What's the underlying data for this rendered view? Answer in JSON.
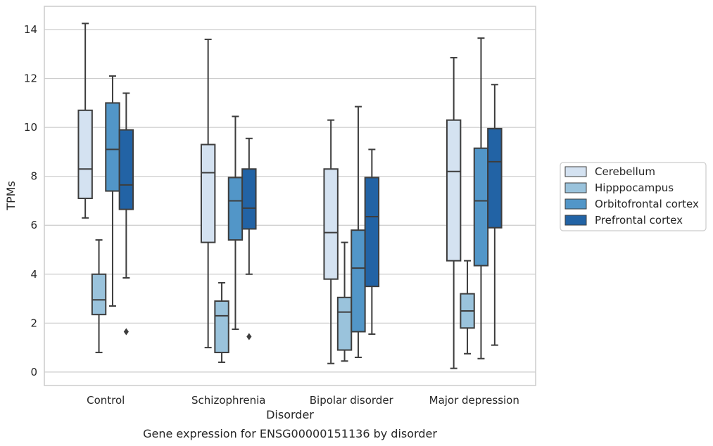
{
  "chart_data": {
    "type": "box",
    "title": "Gene expression for ENSG00000151136 by disorder",
    "xlabel": "Disorder",
    "ylabel": "TPMs",
    "categories": [
      "Control",
      "Schizophrenia",
      "Bipolar disorder",
      "Major depression"
    ],
    "ylim": [
      -0.55,
      14.95
    ],
    "yticks": [
      "0",
      "2",
      "4",
      "6",
      "8",
      "10",
      "12",
      "14"
    ],
    "grid": "horizontal",
    "legend_position": "right",
    "series": [
      {
        "name": "Cerebellum",
        "color": "#d4e2f1",
        "boxes": [
          {
            "category": "Control",
            "whisker_low": 6.3,
            "q1": 7.1,
            "median": 8.3,
            "q3": 10.7,
            "whisker_high": 14.25,
            "outliers": []
          },
          {
            "category": "Schizophrenia",
            "whisker_low": 1.0,
            "q1": 5.3,
            "median": 8.15,
            "q3": 9.3,
            "whisker_high": 13.6,
            "outliers": []
          },
          {
            "category": "Bipolar disorder",
            "whisker_low": 0.35,
            "q1": 3.8,
            "median": 5.7,
            "q3": 8.3,
            "whisker_high": 10.3,
            "outliers": []
          },
          {
            "category": "Major depression",
            "whisker_low": 0.15,
            "q1": 4.55,
            "median": 8.2,
            "q3": 10.3,
            "whisker_high": 12.85,
            "outliers": []
          }
        ]
      },
      {
        "name": "Hipppocampus",
        "color": "#9ac3dc",
        "boxes": [
          {
            "category": "Control",
            "whisker_low": 0.8,
            "q1": 2.35,
            "median": 2.95,
            "q3": 4.0,
            "whisker_high": 5.4,
            "outliers": []
          },
          {
            "category": "Schizophrenia",
            "whisker_low": 0.4,
            "q1": 0.8,
            "median": 2.3,
            "q3": 2.9,
            "whisker_high": 3.65,
            "outliers": []
          },
          {
            "category": "Bipolar disorder",
            "whisker_low": 0.45,
            "q1": 0.9,
            "median": 2.45,
            "q3": 3.05,
            "whisker_high": 5.3,
            "outliers": []
          },
          {
            "category": "Major depression",
            "whisker_low": 0.75,
            "q1": 1.8,
            "median": 2.5,
            "q3": 3.2,
            "whisker_high": 4.55,
            "outliers": []
          }
        ]
      },
      {
        "name": "Orbitofrontal cortex",
        "color": "#5296c8",
        "boxes": [
          {
            "category": "Control",
            "whisker_low": 2.7,
            "q1": 7.4,
            "median": 9.1,
            "q3": 11.0,
            "whisker_high": 12.1,
            "outliers": []
          },
          {
            "category": "Schizophrenia",
            "whisker_low": 1.75,
            "q1": 5.4,
            "median": 7.0,
            "q3": 7.95,
            "whisker_high": 10.45,
            "outliers": []
          },
          {
            "category": "Bipolar disorder",
            "whisker_low": 0.6,
            "q1": 1.65,
            "median": 4.25,
            "q3": 5.8,
            "whisker_high": 10.85,
            "outliers": []
          },
          {
            "category": "Major depression",
            "whisker_low": 0.55,
            "q1": 4.35,
            "median": 7.0,
            "q3": 9.15,
            "whisker_high": 13.65,
            "outliers": []
          }
        ]
      },
      {
        "name": "Prefrontal cortex",
        "color": "#2263a5",
        "boxes": [
          {
            "category": "Control",
            "whisker_low": 3.85,
            "q1": 6.65,
            "median": 7.65,
            "q3": 9.9,
            "whisker_high": 11.4,
            "outliers": [
              1.65
            ]
          },
          {
            "category": "Schizophrenia",
            "whisker_low": 4.0,
            "q1": 5.85,
            "median": 6.7,
            "q3": 8.3,
            "whisker_high": 9.55,
            "outliers": [
              1.45
            ]
          },
          {
            "category": "Bipolar disorder",
            "whisker_low": 1.55,
            "q1": 3.5,
            "median": 6.35,
            "q3": 7.95,
            "whisker_high": 9.1,
            "outliers": []
          },
          {
            "category": "Major depression",
            "whisker_low": 1.1,
            "q1": 5.9,
            "median": 8.6,
            "q3": 9.95,
            "whisker_high": 11.75,
            "outliers": []
          }
        ]
      }
    ]
  }
}
